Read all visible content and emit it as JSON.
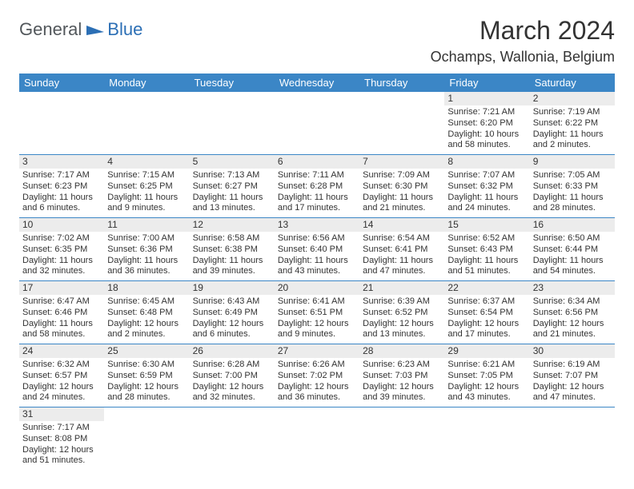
{
  "logo": {
    "part1": "General",
    "part2": "Blue"
  },
  "title": "March 2024",
  "location": "Ochamps, Wallonia, Belgium",
  "colors": {
    "header_bg": "#3b86c6",
    "header_text": "#ffffff",
    "daynum_bg": "#ececec",
    "border": "#3b86c6",
    "logo_gray": "#52575b",
    "logo_blue": "#2c6fb5",
    "page_bg": "#ffffff",
    "text": "#333333"
  },
  "fonts": {
    "title_size": 32,
    "location_size": 18,
    "header_size": 13,
    "cell_size": 11,
    "daynum_size": 12
  },
  "weekdays": [
    "Sunday",
    "Monday",
    "Tuesday",
    "Wednesday",
    "Thursday",
    "Friday",
    "Saturday"
  ],
  "weeks": [
    [
      null,
      null,
      null,
      null,
      null,
      {
        "n": "1",
        "sr": "Sunrise: 7:21 AM",
        "ss": "Sunset: 6:20 PM",
        "dl1": "Daylight: 10 hours",
        "dl2": "and 58 minutes."
      },
      {
        "n": "2",
        "sr": "Sunrise: 7:19 AM",
        "ss": "Sunset: 6:22 PM",
        "dl1": "Daylight: 11 hours",
        "dl2": "and 2 minutes."
      }
    ],
    [
      {
        "n": "3",
        "sr": "Sunrise: 7:17 AM",
        "ss": "Sunset: 6:23 PM",
        "dl1": "Daylight: 11 hours",
        "dl2": "and 6 minutes."
      },
      {
        "n": "4",
        "sr": "Sunrise: 7:15 AM",
        "ss": "Sunset: 6:25 PM",
        "dl1": "Daylight: 11 hours",
        "dl2": "and 9 minutes."
      },
      {
        "n": "5",
        "sr": "Sunrise: 7:13 AM",
        "ss": "Sunset: 6:27 PM",
        "dl1": "Daylight: 11 hours",
        "dl2": "and 13 minutes."
      },
      {
        "n": "6",
        "sr": "Sunrise: 7:11 AM",
        "ss": "Sunset: 6:28 PM",
        "dl1": "Daylight: 11 hours",
        "dl2": "and 17 minutes."
      },
      {
        "n": "7",
        "sr": "Sunrise: 7:09 AM",
        "ss": "Sunset: 6:30 PM",
        "dl1": "Daylight: 11 hours",
        "dl2": "and 21 minutes."
      },
      {
        "n": "8",
        "sr": "Sunrise: 7:07 AM",
        "ss": "Sunset: 6:32 PM",
        "dl1": "Daylight: 11 hours",
        "dl2": "and 24 minutes."
      },
      {
        "n": "9",
        "sr": "Sunrise: 7:05 AM",
        "ss": "Sunset: 6:33 PM",
        "dl1": "Daylight: 11 hours",
        "dl2": "and 28 minutes."
      }
    ],
    [
      {
        "n": "10",
        "sr": "Sunrise: 7:02 AM",
        "ss": "Sunset: 6:35 PM",
        "dl1": "Daylight: 11 hours",
        "dl2": "and 32 minutes."
      },
      {
        "n": "11",
        "sr": "Sunrise: 7:00 AM",
        "ss": "Sunset: 6:36 PM",
        "dl1": "Daylight: 11 hours",
        "dl2": "and 36 minutes."
      },
      {
        "n": "12",
        "sr": "Sunrise: 6:58 AM",
        "ss": "Sunset: 6:38 PM",
        "dl1": "Daylight: 11 hours",
        "dl2": "and 39 minutes."
      },
      {
        "n": "13",
        "sr": "Sunrise: 6:56 AM",
        "ss": "Sunset: 6:40 PM",
        "dl1": "Daylight: 11 hours",
        "dl2": "and 43 minutes."
      },
      {
        "n": "14",
        "sr": "Sunrise: 6:54 AM",
        "ss": "Sunset: 6:41 PM",
        "dl1": "Daylight: 11 hours",
        "dl2": "and 47 minutes."
      },
      {
        "n": "15",
        "sr": "Sunrise: 6:52 AM",
        "ss": "Sunset: 6:43 PM",
        "dl1": "Daylight: 11 hours",
        "dl2": "and 51 minutes."
      },
      {
        "n": "16",
        "sr": "Sunrise: 6:50 AM",
        "ss": "Sunset: 6:44 PM",
        "dl1": "Daylight: 11 hours",
        "dl2": "and 54 minutes."
      }
    ],
    [
      {
        "n": "17",
        "sr": "Sunrise: 6:47 AM",
        "ss": "Sunset: 6:46 PM",
        "dl1": "Daylight: 11 hours",
        "dl2": "and 58 minutes."
      },
      {
        "n": "18",
        "sr": "Sunrise: 6:45 AM",
        "ss": "Sunset: 6:48 PM",
        "dl1": "Daylight: 12 hours",
        "dl2": "and 2 minutes."
      },
      {
        "n": "19",
        "sr": "Sunrise: 6:43 AM",
        "ss": "Sunset: 6:49 PM",
        "dl1": "Daylight: 12 hours",
        "dl2": "and 6 minutes."
      },
      {
        "n": "20",
        "sr": "Sunrise: 6:41 AM",
        "ss": "Sunset: 6:51 PM",
        "dl1": "Daylight: 12 hours",
        "dl2": "and 9 minutes."
      },
      {
        "n": "21",
        "sr": "Sunrise: 6:39 AM",
        "ss": "Sunset: 6:52 PM",
        "dl1": "Daylight: 12 hours",
        "dl2": "and 13 minutes."
      },
      {
        "n": "22",
        "sr": "Sunrise: 6:37 AM",
        "ss": "Sunset: 6:54 PM",
        "dl1": "Daylight: 12 hours",
        "dl2": "and 17 minutes."
      },
      {
        "n": "23",
        "sr": "Sunrise: 6:34 AM",
        "ss": "Sunset: 6:56 PM",
        "dl1": "Daylight: 12 hours",
        "dl2": "and 21 minutes."
      }
    ],
    [
      {
        "n": "24",
        "sr": "Sunrise: 6:32 AM",
        "ss": "Sunset: 6:57 PM",
        "dl1": "Daylight: 12 hours",
        "dl2": "and 24 minutes."
      },
      {
        "n": "25",
        "sr": "Sunrise: 6:30 AM",
        "ss": "Sunset: 6:59 PM",
        "dl1": "Daylight: 12 hours",
        "dl2": "and 28 minutes."
      },
      {
        "n": "26",
        "sr": "Sunrise: 6:28 AM",
        "ss": "Sunset: 7:00 PM",
        "dl1": "Daylight: 12 hours",
        "dl2": "and 32 minutes."
      },
      {
        "n": "27",
        "sr": "Sunrise: 6:26 AM",
        "ss": "Sunset: 7:02 PM",
        "dl1": "Daylight: 12 hours",
        "dl2": "and 36 minutes."
      },
      {
        "n": "28",
        "sr": "Sunrise: 6:23 AM",
        "ss": "Sunset: 7:03 PM",
        "dl1": "Daylight: 12 hours",
        "dl2": "and 39 minutes."
      },
      {
        "n": "29",
        "sr": "Sunrise: 6:21 AM",
        "ss": "Sunset: 7:05 PM",
        "dl1": "Daylight: 12 hours",
        "dl2": "and 43 minutes."
      },
      {
        "n": "30",
        "sr": "Sunrise: 6:19 AM",
        "ss": "Sunset: 7:07 PM",
        "dl1": "Daylight: 12 hours",
        "dl2": "and 47 minutes."
      }
    ],
    [
      {
        "n": "31",
        "sr": "Sunrise: 7:17 AM",
        "ss": "Sunset: 8:08 PM",
        "dl1": "Daylight: 12 hours",
        "dl2": "and 51 minutes."
      },
      null,
      null,
      null,
      null,
      null,
      null
    ]
  ]
}
